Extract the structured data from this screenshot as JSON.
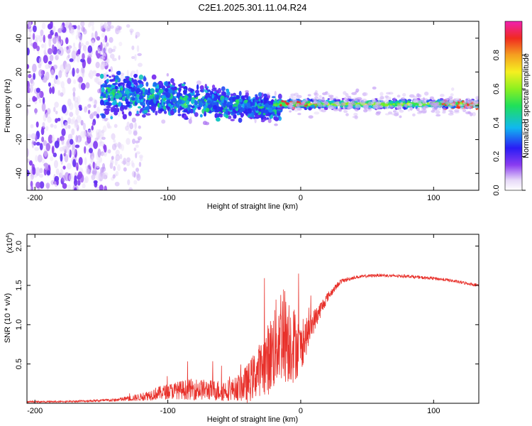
{
  "title": "C2E1.2025.301.11.04.R24",
  "colors": {
    "snr_line": "#e8312b",
    "axis": "#000000",
    "background": "#ffffff"
  },
  "chart_data": [
    {
      "type": "heatmap",
      "name": "spectrogram",
      "xlabel": "Height of straight line (km)",
      "ylabel": "Frequency (Hz)",
      "xlim": [
        -206,
        134
      ],
      "ylim": [
        -50,
        50
      ],
      "x_ticks": [
        "-200",
        "-100",
        "0",
        "100"
      ],
      "x_tick_values": [
        -200,
        -100,
        0,
        100
      ],
      "y_ticks": [
        "-40",
        "-20",
        "0",
        "20",
        "40"
      ],
      "y_tick_values": [
        -40,
        -20,
        0,
        20,
        40
      ],
      "colorbar": {
        "label": "Normalized spectral amplitude",
        "range": [
          0,
          1
        ],
        "ticks": [
          "0.0",
          "0.2",
          "0.4",
          "0.6",
          "0.8"
        ],
        "tick_values": [
          0.0,
          0.2,
          0.4,
          0.6,
          0.8
        ]
      },
      "regions": [
        {
          "x_range": [
            -206,
            -150
          ],
          "freq_range": [
            -50,
            50
          ],
          "amplitude": 0.15,
          "description": "scattered noise"
        },
        {
          "x_range": [
            -150,
            -20
          ],
          "freq_range": [
            -12,
            20
          ],
          "amplitude": 0.35,
          "description": "spreading cluster narrowing toward 0 Hz"
        },
        {
          "x_range": [
            -20,
            134
          ],
          "freq_range": [
            -2,
            3
          ],
          "amplitude": 0.75,
          "description": "narrow band near 0 Hz"
        }
      ]
    },
    {
      "type": "line",
      "name": "snr",
      "xlabel": "Height of straight line (km)",
      "ylabel": "SNR (10 * v/v)",
      "scale_label": "(x10",
      "scale_exponent": "4",
      "scale_close": ")",
      "xlim": [
        -206,
        134
      ],
      "ylim": [
        0,
        2.15
      ],
      "x_ticks": [
        "-200",
        "-100",
        "0",
        "100"
      ],
      "x_tick_values": [
        -200,
        -100,
        0,
        100
      ],
      "y_ticks": [
        "0.5",
        "1.0",
        "1.5",
        "2.0"
      ],
      "y_tick_values": [
        0.5,
        1.0,
        1.5,
        2.0
      ],
      "series": [
        {
          "name": "SNR",
          "x": [
            -206,
            -180,
            -160,
            -140,
            -120,
            -110,
            -100,
            -90,
            -80,
            -70,
            -60,
            -50,
            -40,
            -30,
            -25,
            -20,
            -15,
            -10,
            -5,
            0,
            10,
            20,
            30,
            40,
            50,
            60,
            70,
            80,
            90,
            100,
            110,
            120,
            134
          ],
          "mean": [
            0.02,
            0.02,
            0.03,
            0.04,
            0.08,
            0.12,
            0.15,
            0.17,
            0.18,
            0.17,
            0.16,
            0.18,
            0.25,
            0.45,
            0.55,
            0.7,
            0.9,
            0.85,
            0.75,
            0.7,
            1.05,
            1.35,
            1.55,
            1.6,
            1.62,
            1.63,
            1.62,
            1.62,
            1.6,
            1.59,
            1.57,
            1.54,
            1.5
          ],
          "noise": [
            0.01,
            0.01,
            0.015,
            0.02,
            0.05,
            0.08,
            0.1,
            0.12,
            0.14,
            0.13,
            0.14,
            0.14,
            0.25,
            0.35,
            0.45,
            0.55,
            0.65,
            0.6,
            0.5,
            0.3,
            0.15,
            0.06,
            0.03,
            0.02,
            0.02,
            0.02,
            0.02,
            0.02,
            0.02,
            0.02,
            0.02,
            0.02,
            0.02
          ]
        }
      ]
    }
  ]
}
